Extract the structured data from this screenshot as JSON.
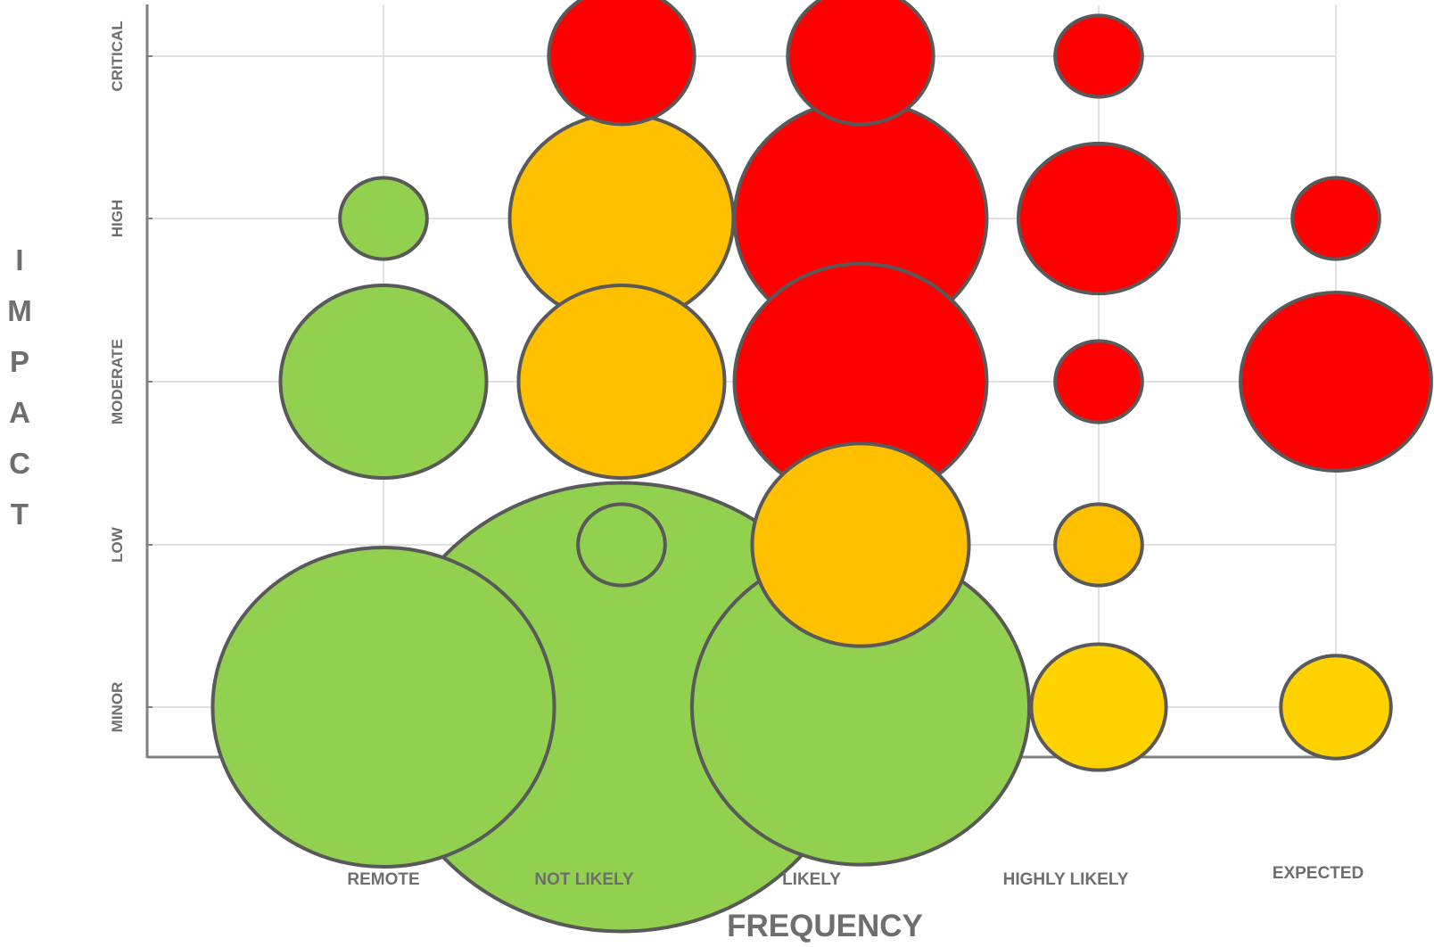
{
  "chart_data": {
    "type": "bubble",
    "xlabel": "FREQUENCY",
    "ylabel": "IMPACT",
    "x_categories": [
      "REMOTE",
      "NOT LIKELY",
      "LIKELY",
      "HIGHLY LIKELY",
      "EXPECTED"
    ],
    "y_categories": [
      "MINOR",
      "LOW",
      "MODERATE",
      "HIGH",
      "CRITICAL"
    ],
    "grid": true,
    "legend": "none",
    "colors": {
      "green": "#92d050",
      "orange": "#ffc000",
      "yellow": "#ffd200",
      "red": "#ff0000",
      "outline": "#595959",
      "grid": "#d9d9d9",
      "axis": "#808080",
      "text": "#6e6e6e"
    },
    "points": [
      {
        "x": "NOT LIKELY",
        "y": "CRITICAL",
        "size": 14,
        "color": "red"
      },
      {
        "x": "LIKELY",
        "y": "CRITICAL",
        "size": 14,
        "color": "red"
      },
      {
        "x": "HIGHLY LIKELY",
        "y": "CRITICAL",
        "size": 5,
        "color": "red"
      },
      {
        "x": "REMOTE",
        "y": "HIGH",
        "size": 5,
        "color": "green"
      },
      {
        "x": "NOT LIKELY",
        "y": "HIGH",
        "size": 33,
        "color": "orange"
      },
      {
        "x": "LIKELY",
        "y": "HIGH",
        "size": 42,
        "color": "red"
      },
      {
        "x": "HIGHLY LIKELY",
        "y": "HIGH",
        "size": 17,
        "color": "red"
      },
      {
        "x": "EXPECTED",
        "y": "HIGH",
        "size": 5,
        "color": "red"
      },
      {
        "x": "REMOTE",
        "y": "MODERATE",
        "size": 28,
        "color": "green"
      },
      {
        "x": "NOT LIKELY",
        "y": "MODERATE",
        "size": 28,
        "color": "orange"
      },
      {
        "x": "LIKELY",
        "y": "MODERATE",
        "size": 42,
        "color": "red"
      },
      {
        "x": "HIGHLY LIKELY",
        "y": "MODERATE",
        "size": 5,
        "color": "red"
      },
      {
        "x": "EXPECTED",
        "y": "MODERATE",
        "size": 24,
        "color": "red"
      },
      {
        "x": "NOT LIKELY",
        "y": "LOW",
        "size": 5,
        "color": "green"
      },
      {
        "x": "LIKELY",
        "y": "LOW",
        "size": 31,
        "color": "orange"
      },
      {
        "x": "HIGHLY LIKELY",
        "y": "LOW",
        "size": 5,
        "color": "orange"
      },
      {
        "x": "REMOTE",
        "y": "MINOR",
        "size": 77,
        "color": "green"
      },
      {
        "x": "NOT LIKELY",
        "y": "MINOR",
        "size": 152,
        "color": "green"
      },
      {
        "x": "LIKELY",
        "y": "MINOR",
        "size": 75,
        "color": "green"
      },
      {
        "x": "HIGHLY LIKELY",
        "y": "MINOR",
        "size": 12,
        "color": "yellow"
      },
      {
        "x": "EXPECTED",
        "y": "MINOR",
        "size": 8,
        "color": "yellow"
      }
    ]
  }
}
